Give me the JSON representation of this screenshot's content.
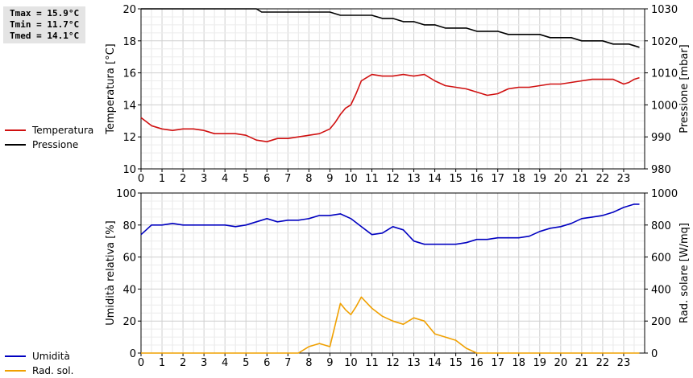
{
  "stats": {
    "tmax": "Tmax = 15.9°C",
    "tmin": "Tmin = 11.7°C",
    "tmed": "Tmed = 14.1°C"
  },
  "legend_top": [
    {
      "label": "Temperatura",
      "color": "#d01010"
    },
    {
      "label": "Pressione",
      "color": "#000000"
    }
  ],
  "legend_bottom": [
    {
      "label": "Umidità",
      "color": "#0000c0"
    },
    {
      "label": "Rad. sol.",
      "color": "#f0a000"
    }
  ],
  "chart_data": [
    {
      "type": "line",
      "title": "",
      "xlabel": "",
      "xlim": [
        0,
        24
      ],
      "xticks": [
        0,
        1,
        2,
        3,
        4,
        5,
        6,
        7,
        8,
        9,
        10,
        11,
        12,
        13,
        14,
        15,
        16,
        17,
        18,
        19,
        20,
        21,
        22,
        23
      ],
      "grid": true,
      "ylabel_left": "Temperatura [°C]",
      "ylim_left": [
        10,
        20
      ],
      "yticks_left": [
        10,
        12,
        14,
        16,
        18,
        20
      ],
      "ylabel_right": "Pressione [mbar]",
      "ylim_right": [
        980,
        1030
      ],
      "yticks_right": [
        980,
        990,
        1000,
        1010,
        1020,
        1030
      ],
      "series": [
        {
          "name": "Temperatura",
          "axis": "left",
          "color": "#d01010",
          "x": [
            0,
            0.5,
            1,
            1.5,
            2,
            2.5,
            3,
            3.5,
            4,
            4.5,
            5,
            5.5,
            6,
            6.5,
            7,
            7.5,
            8,
            8.5,
            9,
            9.25,
            9.5,
            9.75,
            10,
            10.25,
            10.5,
            10.75,
            11,
            11.5,
            12,
            12.5,
            13,
            13.5,
            14,
            14.5,
            15,
            15.5,
            16,
            16.5,
            17,
            17.5,
            18,
            18.5,
            19,
            19.5,
            20,
            20.5,
            21,
            21.5,
            22,
            22.5,
            23,
            23.25,
            23.5,
            23.75
          ],
          "y": [
            13.2,
            12.7,
            12.5,
            12.4,
            12.5,
            12.5,
            12.4,
            12.2,
            12.2,
            12.2,
            12.1,
            11.8,
            11.7,
            11.9,
            11.9,
            12.0,
            12.1,
            12.2,
            12.5,
            12.9,
            13.4,
            13.8,
            14.0,
            14.7,
            15.5,
            15.7,
            15.9,
            15.8,
            15.8,
            15.9,
            15.8,
            15.9,
            15.5,
            15.2,
            15.1,
            15.0,
            14.8,
            14.6,
            14.7,
            15.0,
            15.1,
            15.1,
            15.2,
            15.3,
            15.3,
            15.4,
            15.5,
            15.6,
            15.6,
            15.6,
            15.3,
            15.4,
            15.6,
            15.7
          ]
        },
        {
          "name": "Pressione",
          "axis": "right",
          "color": "#000000",
          "x": [
            0,
            5.5,
            5.75,
            6,
            6.5,
            7,
            7.5,
            8,
            8.5,
            9,
            9.5,
            10,
            10.5,
            11,
            11.5,
            12,
            12.5,
            13,
            13.5,
            14,
            14.5,
            15,
            15.5,
            16,
            16.5,
            17,
            17.5,
            18,
            18.5,
            19,
            19.5,
            20,
            20.5,
            21,
            21.5,
            22,
            22.5,
            23,
            23.25,
            23.5,
            23.75
          ],
          "y": [
            1031,
            1030,
            1029,
            1029,
            1029,
            1029,
            1029,
            1029,
            1029,
            1029,
            1028,
            1028,
            1028,
            1028,
            1027,
            1027,
            1026,
            1026,
            1025,
            1025,
            1024,
            1024,
            1024,
            1023,
            1023,
            1023,
            1022,
            1022,
            1022,
            1022,
            1021,
            1021,
            1021,
            1020,
            1020,
            1020,
            1019,
            1019,
            1019,
            1018.5,
            1018
          ]
        }
      ]
    },
    {
      "type": "line",
      "title": "",
      "xlabel": "",
      "xlim": [
        0,
        24
      ],
      "xticks": [
        0,
        1,
        2,
        3,
        4,
        5,
        6,
        7,
        8,
        9,
        10,
        11,
        12,
        13,
        14,
        15,
        16,
        17,
        18,
        19,
        20,
        21,
        22,
        23
      ],
      "grid": true,
      "ylabel_left": "Umidità relativa [%]",
      "ylim_left": [
        0,
        100
      ],
      "yticks_left": [
        0,
        20,
        40,
        60,
        80,
        100
      ],
      "ylabel_right": "Rad. solare [W/mq]",
      "ylim_right": [
        0,
        1000
      ],
      "yticks_right": [
        0,
        200,
        400,
        600,
        800,
        1000
      ],
      "series": [
        {
          "name": "Umidità",
          "axis": "left",
          "color": "#0000c0",
          "x": [
            0,
            0.25,
            0.5,
            1,
            1.5,
            2,
            2.5,
            3,
            3.5,
            4,
            4.5,
            5,
            5.5,
            6,
            6.5,
            7,
            7.5,
            8,
            8.5,
            9,
            9.5,
            10,
            10.5,
            11,
            11.5,
            12,
            12.5,
            13,
            13.5,
            14,
            14.5,
            15,
            15.5,
            16,
            16.5,
            17,
            17.5,
            18,
            18.5,
            19,
            19.5,
            20,
            20.5,
            21,
            21.5,
            22,
            22.5,
            23,
            23.5,
            23.75
          ],
          "y": [
            74,
            77,
            80,
            80,
            81,
            80,
            80,
            80,
            80,
            80,
            79,
            80,
            82,
            84,
            82,
            83,
            83,
            84,
            86,
            86,
            87,
            84,
            79,
            74,
            75,
            79,
            77,
            70,
            68,
            68,
            68,
            68,
            69,
            71,
            71,
            72,
            72,
            72,
            73,
            76,
            78,
            79,
            81,
            84,
            85,
            86,
            88,
            91,
            93,
            93
          ]
        },
        {
          "name": "Rad. sol.",
          "axis": "right",
          "color": "#f0a000",
          "x": [
            0,
            7.5,
            8,
            8.5,
            9,
            9.5,
            9.75,
            10,
            10.25,
            10.5,
            11,
            11.5,
            12,
            12.5,
            13,
            13.5,
            14,
            14.5,
            15,
            15.5,
            16,
            16.5,
            17,
            18,
            19,
            20,
            21,
            22,
            23,
            23.75
          ],
          "y": [
            0,
            0,
            40,
            60,
            40,
            310,
            270,
            240,
            290,
            350,
            280,
            230,
            200,
            180,
            220,
            200,
            120,
            100,
            80,
            30,
            0,
            0,
            0,
            0,
            0,
            0,
            0,
            0,
            0,
            0
          ]
        }
      ]
    }
  ]
}
